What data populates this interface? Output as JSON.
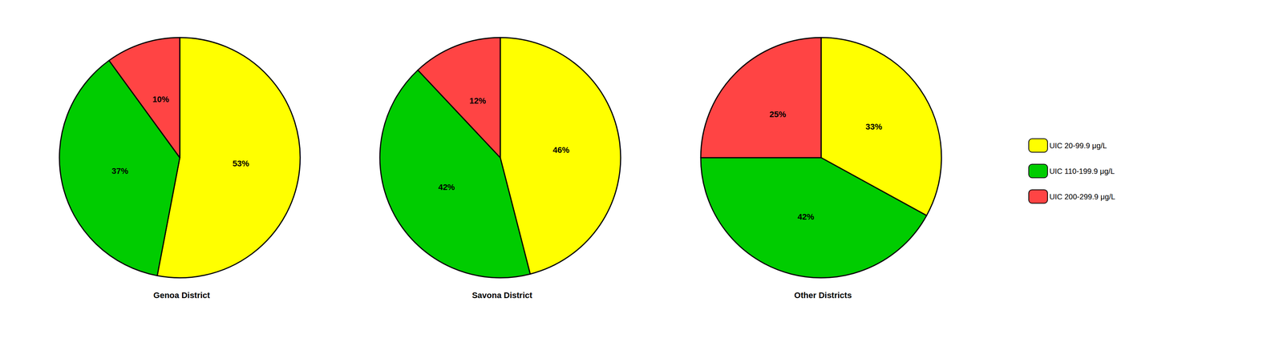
{
  "chart_data": [
    {
      "type": "pie",
      "title": "Genoa District",
      "categories": [
        "UIC 20-99.9 μg/L",
        "UIC 110-199.9 μg/L",
        "UIC 200-299.9 μg/L"
      ],
      "values": [
        53,
        37,
        10
      ],
      "value_labels": [
        "53%",
        "37%",
        "10%"
      ],
      "colors": [
        "#FFFF00",
        "#00CC00",
        "#FF4444"
      ],
      "data_labels": true,
      "legend": "right"
    },
    {
      "type": "pie",
      "title": "Savona District",
      "categories": [
        "UIC 20-99.9 μg/L",
        "UIC 110-199.9 μg/L",
        "UIC 200-299.9 μg/L"
      ],
      "values": [
        46,
        42,
        12
      ],
      "value_labels": [
        "46%",
        "42%",
        "12%"
      ],
      "colors": [
        "#FFFF00",
        "#00CC00",
        "#FF4444"
      ],
      "data_labels": true,
      "legend": "right"
    },
    {
      "type": "pie",
      "title": "Other Districts",
      "categories": [
        "UIC 20-99.9 μg/L",
        "UIC 110-199.9 μg/L",
        "UIC 200-299.9 μg/L"
      ],
      "values": [
        33,
        42,
        25
      ],
      "value_labels": [
        "33%",
        "42%",
        "25%"
      ],
      "colors": [
        "#FFFF00",
        "#00CC00",
        "#FF4444"
      ],
      "data_labels": true,
      "legend": "right"
    }
  ]
}
